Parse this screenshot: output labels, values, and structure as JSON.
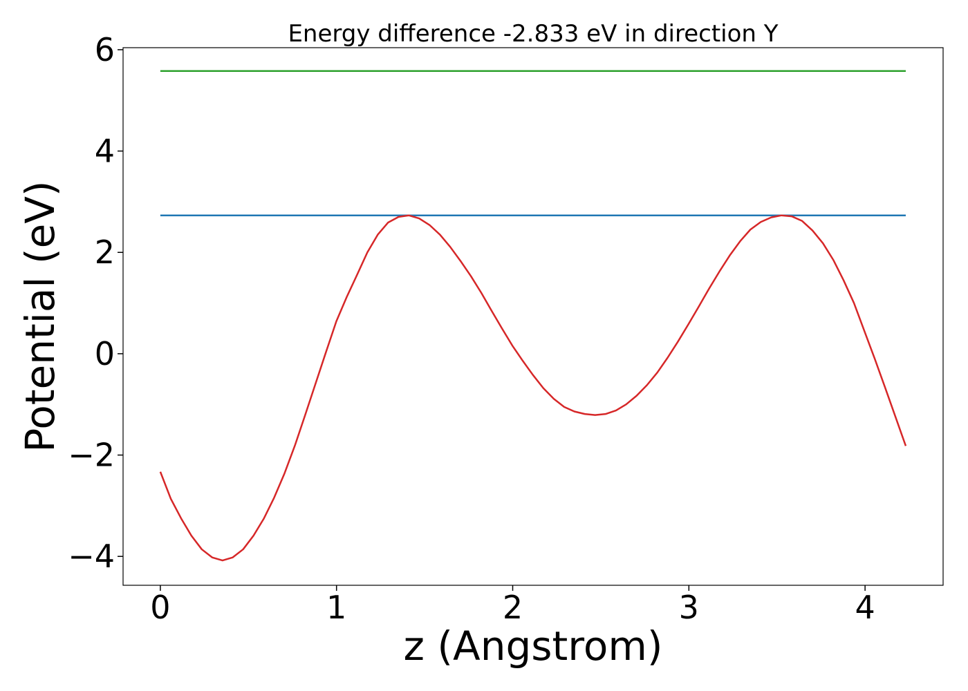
{
  "chart_data": {
    "type": "line",
    "title": "Energy difference -2.833 eV in direction Y",
    "xlabel": "z (Angstrom)",
    "ylabel": "Potential (eV)",
    "xlim": [
      -0.2115,
      4.443
    ],
    "ylim": [
      -4.57,
      6.04
    ],
    "xticks": [
      0,
      1,
      2,
      3,
      4
    ],
    "yticks": [
      {
        "value": -4,
        "label": "−4"
      },
      {
        "value": -2,
        "label": "−2"
      },
      0,
      2,
      4,
      6
    ],
    "series": [
      {
        "color": "#2ca02c",
        "x": [
          0,
          4.231
        ],
        "values": [
          5.58,
          5.58
        ]
      },
      {
        "color": "#1f77b4",
        "x": [
          0,
          4.231
        ],
        "values": [
          2.73,
          2.73
        ]
      },
      {
        "color": "#d62728",
        "x": [
          0,
          0.059,
          0.118,
          0.176,
          0.235,
          0.294,
          0.353,
          0.411,
          0.47,
          0.529,
          0.588,
          0.646,
          0.705,
          0.764,
          0.823,
          0.881,
          0.94,
          0.999,
          1.058,
          1.117,
          1.175,
          1.234,
          1.293,
          1.352,
          1.41,
          1.469,
          1.528,
          1.587,
          1.645,
          1.704,
          1.763,
          1.822,
          1.88,
          1.939,
          1.998,
          2.057,
          2.115,
          2.174,
          2.233,
          2.292,
          2.35,
          2.409,
          2.468,
          2.527,
          2.586,
          2.644,
          2.703,
          2.762,
          2.821,
          2.879,
          2.938,
          2.997,
          3.056,
          3.114,
          3.173,
          3.232,
          3.291,
          3.349,
          3.408,
          3.467,
          3.526,
          3.585,
          3.643,
          3.702,
          3.761,
          3.82,
          3.878,
          3.937,
          3.996,
          4.055,
          4.113,
          4.172,
          4.231
        ],
        "values": [
          -2.33,
          -2.86,
          -3.25,
          -3.59,
          -3.86,
          -4.02,
          -4.08,
          -4.02,
          -3.86,
          -3.59,
          -3.25,
          -2.84,
          -2.36,
          -1.81,
          -1.2,
          -0.59,
          0.03,
          0.64,
          1.12,
          1.56,
          2.0,
          2.35,
          2.59,
          2.7,
          2.73,
          2.67,
          2.54,
          2.35,
          2.11,
          1.83,
          1.53,
          1.2,
          0.85,
          0.5,
          0.16,
          -0.14,
          -0.42,
          -0.68,
          -0.89,
          -1.05,
          -1.14,
          -1.19,
          -1.21,
          -1.19,
          -1.12,
          -1.0,
          -0.83,
          -0.62,
          -0.37,
          -0.08,
          0.24,
          0.58,
          0.93,
          1.28,
          1.62,
          1.94,
          2.22,
          2.45,
          2.6,
          2.69,
          2.73,
          2.71,
          2.62,
          2.43,
          2.18,
          1.85,
          1.45,
          1.0,
          0.45,
          -0.1,
          -0.66,
          -1.24,
          -1.82
        ]
      }
    ]
  }
}
